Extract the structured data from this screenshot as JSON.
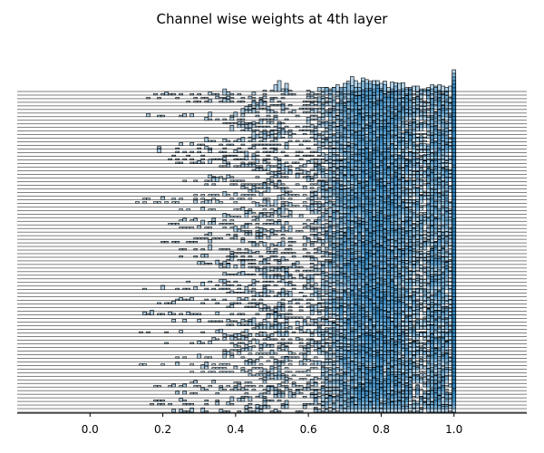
{
  "chart_data": {
    "type": "histogram-ridgeline",
    "title": "Channel wise weights at 4th layer",
    "xlabel": "",
    "ylabel": "",
    "xlim": [
      -0.2,
      1.2
    ],
    "xticks": [
      {
        "value": 0.0,
        "label": "0.0"
      },
      {
        "value": 0.2,
        "label": "0.2"
      },
      {
        "value": 0.4,
        "label": "0.4"
      },
      {
        "value": 0.6,
        "label": "0.6"
      },
      {
        "value": 0.8,
        "label": "0.8"
      },
      {
        "value": 1.0,
        "label": "1.0"
      }
    ],
    "n_channels": 90,
    "bin_width": 0.01,
    "value_range": [
      0.0,
      1.0
    ],
    "distribution": {
      "mode": 0.78,
      "bulk_range": [
        0.55,
        0.99
      ],
      "lower_tail_min": 0.0,
      "spike_at": 1.0,
      "envelope_peak_near": 0.78
    },
    "colors": {
      "bar_fill": "#1f77b4",
      "bar_alpha": 0.35,
      "bar_edge": "#000000",
      "baseline": "#000000"
    },
    "grid": false,
    "legend": "none"
  }
}
